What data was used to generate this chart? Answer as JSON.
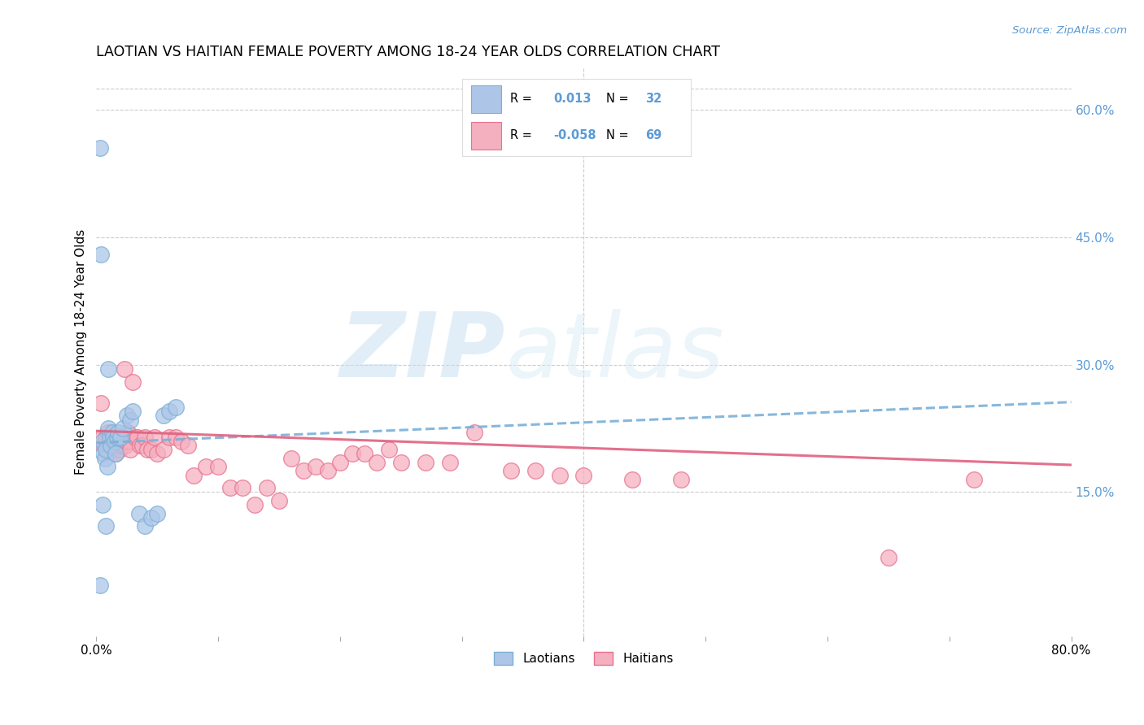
{
  "title": "LAOTIAN VS HAITIAN FEMALE POVERTY AMONG 18-24 YEAR OLDS CORRELATION CHART",
  "source_text": "Source: ZipAtlas.com",
  "ylabel": "Female Poverty Among 18-24 Year Olds",
  "xlim": [
    0.0,
    0.8
  ],
  "ylim": [
    -0.02,
    0.65
  ],
  "xticks": [
    0.0,
    0.1,
    0.2,
    0.3,
    0.4,
    0.5,
    0.6,
    0.7,
    0.8
  ],
  "xtick_labels": [
    "0.0%",
    "",
    "",
    "",
    "",
    "",
    "",
    "",
    "80.0%"
  ],
  "yticks_right": [
    0.15,
    0.3,
    0.45,
    0.6
  ],
  "ytick_labels_right": [
    "15.0%",
    "30.0%",
    "45.0%",
    "60.0%"
  ],
  "background_color": "#ffffff",
  "grid_color": "#cccccc",
  "watermark": "ZIPatlas",
  "laotian_color": "#adc6e8",
  "haitian_color": "#f5b0c0",
  "laotian_edge": "#7aafd4",
  "haitian_edge": "#e87090",
  "trendline_laotian_color": "#7ab0d8",
  "trendline_haitian_color": "#e06080",
  "legend_r_laotian": "0.013",
  "legend_n_laotian": "32",
  "legend_r_haitian": "-0.058",
  "legend_n_haitian": "69",
  "laotian_x": [
    0.003,
    0.004,
    0.005,
    0.006,
    0.007,
    0.008,
    0.009,
    0.01,
    0.011,
    0.012,
    0.013,
    0.014,
    0.015,
    0.016,
    0.017,
    0.018,
    0.02,
    0.022,
    0.025,
    0.028,
    0.03,
    0.035,
    0.04,
    0.045,
    0.05,
    0.055,
    0.06,
    0.065,
    0.005,
    0.008,
    0.003,
    0.01
  ],
  "laotian_y": [
    0.555,
    0.43,
    0.21,
    0.195,
    0.19,
    0.2,
    0.18,
    0.225,
    0.215,
    0.205,
    0.22,
    0.215,
    0.21,
    0.195,
    0.215,
    0.22,
    0.215,
    0.225,
    0.24,
    0.235,
    0.245,
    0.125,
    0.11,
    0.12,
    0.125,
    0.24,
    0.245,
    0.25,
    0.135,
    0.11,
    0.04,
    0.295
  ],
  "haitian_x": [
    0.004,
    0.005,
    0.006,
    0.007,
    0.008,
    0.009,
    0.01,
    0.011,
    0.012,
    0.013,
    0.014,
    0.015,
    0.016,
    0.017,
    0.018,
    0.019,
    0.02,
    0.021,
    0.022,
    0.023,
    0.024,
    0.025,
    0.026,
    0.027,
    0.028,
    0.03,
    0.032,
    0.034,
    0.036,
    0.038,
    0.04,
    0.042,
    0.045,
    0.048,
    0.05,
    0.055,
    0.06,
    0.065,
    0.07,
    0.075,
    0.08,
    0.09,
    0.1,
    0.11,
    0.12,
    0.13,
    0.14,
    0.15,
    0.16,
    0.17,
    0.18,
    0.19,
    0.2,
    0.21,
    0.22,
    0.23,
    0.24,
    0.25,
    0.27,
    0.29,
    0.31,
    0.34,
    0.36,
    0.38,
    0.4,
    0.44,
    0.48,
    0.65,
    0.72
  ],
  "haitian_y": [
    0.255,
    0.215,
    0.205,
    0.21,
    0.215,
    0.2,
    0.22,
    0.205,
    0.215,
    0.2,
    0.21,
    0.2,
    0.195,
    0.205,
    0.215,
    0.2,
    0.215,
    0.205,
    0.215,
    0.295,
    0.205,
    0.21,
    0.22,
    0.21,
    0.2,
    0.28,
    0.215,
    0.215,
    0.205,
    0.205,
    0.215,
    0.2,
    0.2,
    0.215,
    0.195,
    0.2,
    0.215,
    0.215,
    0.21,
    0.205,
    0.17,
    0.18,
    0.18,
    0.155,
    0.155,
    0.135,
    0.155,
    0.14,
    0.19,
    0.175,
    0.18,
    0.175,
    0.185,
    0.195,
    0.195,
    0.185,
    0.2,
    0.185,
    0.185,
    0.185,
    0.22,
    0.175,
    0.175,
    0.17,
    0.17,
    0.165,
    0.165,
    0.073,
    0.165
  ]
}
